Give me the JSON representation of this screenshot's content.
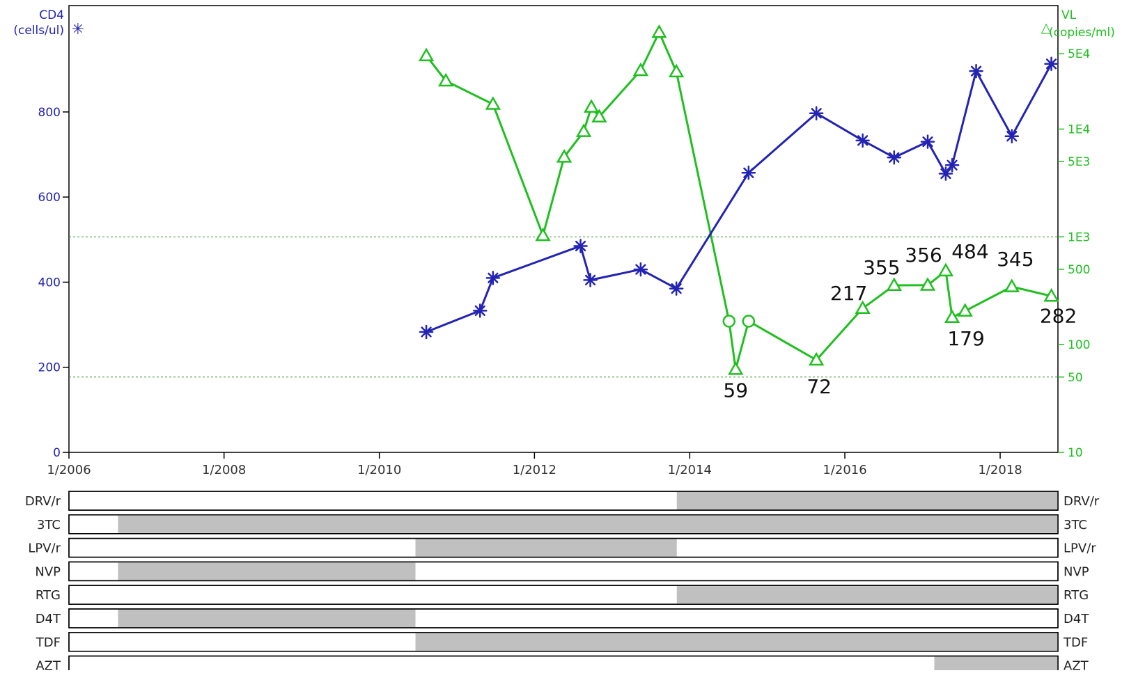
{
  "chart_data": {
    "type": "line",
    "x_axis": {
      "min": "2006-01-01",
      "max": "2018-09-30",
      "ticks": [
        {
          "date": "2006-01-01",
          "label": "1/2006"
        },
        {
          "date": "2008-01-01",
          "label": "1/2008"
        },
        {
          "date": "2010-01-01",
          "label": "1/2010"
        },
        {
          "date": "2012-01-01",
          "label": "1/2012"
        },
        {
          "date": "2014-01-01",
          "label": "1/2014"
        },
        {
          "date": "2016-01-01",
          "label": "1/2016"
        },
        {
          "date": "2018-01-01",
          "label": "1/2018"
        }
      ]
    },
    "y_left": {
      "label_line1": "CD4",
      "label_line2": "(cells/ul)",
      "marker_symbol": "✳",
      "min": 0,
      "max": 1050,
      "ticks": [
        {
          "value": 0,
          "label": "0"
        },
        {
          "value": 200,
          "label": "200"
        },
        {
          "value": 400,
          "label": "400"
        },
        {
          "value": 600,
          "label": "600"
        },
        {
          "value": 800,
          "label": "800"
        }
      ],
      "color": "#2323b4"
    },
    "y_right": {
      "label_line1": "VL",
      "label_line2": "(copies/ml)",
      "marker_symbol": "△",
      "scale": "log",
      "min": 10,
      "max": 140000,
      "ticks": [
        {
          "value": 10,
          "label": "10"
        },
        {
          "value": 50,
          "label": "50"
        },
        {
          "value": 100,
          "label": "100"
        },
        {
          "value": 500,
          "label": "500"
        },
        {
          "value": 1000,
          "label": "1E3"
        },
        {
          "value": 5000,
          "label": "5E3"
        },
        {
          "value": 10000,
          "label": "1E4"
        },
        {
          "value": 50000,
          "label": "5E4"
        }
      ],
      "color": "#1fbf1f"
    },
    "reference_lines": [
      {
        "axis": "right",
        "value": 1000
      },
      {
        "axis": "right",
        "value": 50
      }
    ],
    "series": [
      {
        "axis": "left",
        "marker": "asterisk",
        "color": "#2323b4",
        "points": [
          {
            "date": "2010-08-10",
            "value": 283
          },
          {
            "date": "2011-04-20",
            "value": 333
          },
          {
            "date": "2011-06-20",
            "value": 410
          },
          {
            "date": "2012-08-05",
            "value": 485
          },
          {
            "date": "2012-09-20",
            "value": 405
          },
          {
            "date": "2013-05-15",
            "value": 430
          },
          {
            "date": "2013-10-30",
            "value": 385
          },
          {
            "date": "2014-10-05",
            "value": 657
          },
          {
            "date": "2015-08-20",
            "value": 797
          },
          {
            "date": "2016-03-25",
            "value": 733
          },
          {
            "date": "2016-08-20",
            "value": 693
          },
          {
            "date": "2017-01-25",
            "value": 730
          },
          {
            "date": "2017-04-20",
            "value": 655
          },
          {
            "date": "2017-05-20",
            "value": 675
          },
          {
            "date": "2017-09-10",
            "value": 896
          },
          {
            "date": "2018-02-25",
            "value": 743
          },
          {
            "date": "2018-08-30",
            "value": 913
          }
        ]
      },
      {
        "axis": "right",
        "marker": "triangle",
        "color": "#1fbf1f",
        "points": [
          {
            "date": "2010-08-10",
            "value": 48000,
            "marker": "triangle",
            "label": ""
          },
          {
            "date": "2010-11-10",
            "value": 28000,
            "marker": "triangle",
            "label": ""
          },
          {
            "date": "2011-06-20",
            "value": 17000,
            "marker": "triangle",
            "label": ""
          },
          {
            "date": "2012-02-10",
            "value": 1030,
            "marker": "triangle",
            "label": ""
          },
          {
            "date": "2012-05-20",
            "value": 5500,
            "marker": "triangle",
            "label": ""
          },
          {
            "date": "2012-08-20",
            "value": 9500,
            "marker": "triangle",
            "label": ""
          },
          {
            "date": "2012-09-25",
            "value": 16000,
            "marker": "triangle",
            "label": ""
          },
          {
            "date": "2012-11-01",
            "value": 13000,
            "marker": "triangle",
            "label": ""
          },
          {
            "date": "2013-05-15",
            "value": 35000,
            "marker": "triangle",
            "label": ""
          },
          {
            "date": "2013-08-10",
            "value": 79000,
            "marker": "triangle",
            "label": ""
          },
          {
            "date": "2013-10-30",
            "value": 34000,
            "marker": "triangle",
            "label": ""
          },
          {
            "date": "2014-07-05",
            "value": 165,
            "marker": "circle",
            "label": ""
          },
          {
            "date": "2014-08-05",
            "value": 59,
            "marker": "triangle",
            "label": "59"
          },
          {
            "date": "2014-10-05",
            "value": 165,
            "marker": "circle",
            "label": ""
          },
          {
            "date": "2015-08-20",
            "value": 72,
            "marker": "triangle",
            "label": "72"
          },
          {
            "date": "2016-03-25",
            "value": 217,
            "marker": "triangle",
            "label": "217"
          },
          {
            "date": "2016-08-20",
            "value": 355,
            "marker": "triangle",
            "label": "355"
          },
          {
            "date": "2017-01-25",
            "value": 356,
            "marker": "triangle",
            "label": "356"
          },
          {
            "date": "2017-04-20",
            "value": 484,
            "marker": "triangle",
            "label": "484"
          },
          {
            "date": "2017-05-20",
            "value": 179,
            "marker": "triangle",
            "label": "179"
          },
          {
            "date": "2017-07-20",
            "value": 205,
            "marker": "triangle",
            "label": ""
          },
          {
            "date": "2018-02-25",
            "value": 345,
            "marker": "triangle",
            "label": "345"
          },
          {
            "date": "2018-08-30",
            "value": 282,
            "marker": "triangle",
            "label": "282"
          }
        ]
      }
    ],
    "regimen_timeline": [
      {
        "drug": "DRV/r",
        "periods": [
          {
            "start": "2013-11-01",
            "end": "2018-09-30"
          }
        ]
      },
      {
        "drug": "3TC",
        "periods": [
          {
            "start": "2006-08-20",
            "end": "2018-09-30"
          }
        ]
      },
      {
        "drug": "LPV/r",
        "periods": [
          {
            "start": "2010-06-20",
            "end": "2013-11-01"
          }
        ]
      },
      {
        "drug": "NVP",
        "periods": [
          {
            "start": "2006-08-20",
            "end": "2010-06-20"
          }
        ]
      },
      {
        "drug": "RTG",
        "periods": [
          {
            "start": "2013-11-01",
            "end": "2018-09-30"
          }
        ]
      },
      {
        "drug": "D4T",
        "periods": [
          {
            "start": "2006-08-20",
            "end": "2010-06-20"
          }
        ]
      },
      {
        "drug": "TDF",
        "periods": [
          {
            "start": "2010-06-20",
            "end": "2018-09-30"
          }
        ]
      },
      {
        "drug": "AZT",
        "periods": [
          {
            "start": "2017-02-25",
            "end": "2018-09-30"
          }
        ]
      }
    ]
  }
}
